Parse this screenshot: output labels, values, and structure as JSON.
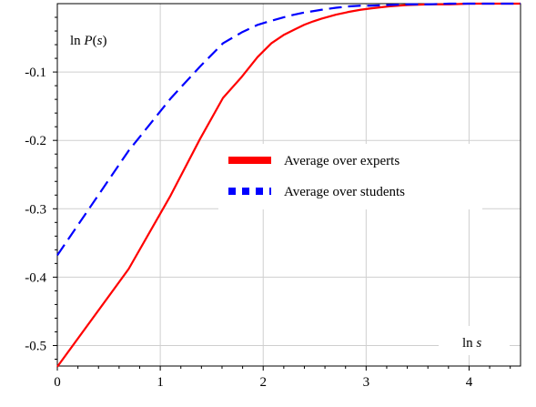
{
  "chart_data": {
    "type": "line",
    "xlabel": {
      "prefix": "ln ",
      "var": "s"
    },
    "ylabel": {
      "prefix": "ln ",
      "var": "P",
      "arg_open": "(",
      "arg_var": "s",
      "arg_close": ")"
    },
    "xlim": [
      0,
      4.5
    ],
    "ylim": [
      -0.53,
      0.0
    ],
    "xticks": [
      {
        "value": 0,
        "label": "0"
      },
      {
        "value": 1,
        "label": "1"
      },
      {
        "value": 2,
        "label": "2"
      },
      {
        "value": 3,
        "label": "3"
      },
      {
        "value": 4,
        "label": "4"
      }
    ],
    "yticks": [
      {
        "value": -0.1,
        "label": "-0.1"
      },
      {
        "value": -0.2,
        "label": "-0.2"
      },
      {
        "value": -0.3,
        "label": "-0.3"
      },
      {
        "value": -0.4,
        "label": "-0.4"
      },
      {
        "value": -0.5,
        "label": "-0.5"
      }
    ],
    "grid": true,
    "legend_position": "center-right",
    "series": [
      {
        "name": "Average over experts",
        "color": "#ff0000",
        "style": "solid",
        "x": [
          0,
          0.693,
          1.099,
          1.386,
          1.609,
          1.792,
          1.946,
          2.079,
          2.197,
          2.303,
          2.398,
          2.485,
          2.565,
          2.708,
          2.833,
          2.944,
          3.045,
          3.219,
          3.401,
          3.611,
          3.807,
          4.0,
          4.248,
          4.5
        ],
        "y": [
          -0.531,
          -0.388,
          -0.281,
          -0.198,
          -0.138,
          -0.107,
          -0.078,
          -0.058,
          -0.046,
          -0.038,
          -0.031,
          -0.026,
          -0.022,
          -0.016,
          -0.012,
          -0.009,
          -0.007,
          -0.004,
          -0.002,
          -0.001,
          -0.001,
          0.0,
          0.0,
          0.0
        ]
      },
      {
        "name": "Average over students",
        "color": "#0000ff",
        "style": "dashed",
        "x": [
          0,
          0.693,
          1.099,
          1.386,
          1.609,
          1.792,
          1.946,
          2.079,
          2.197,
          2.303,
          2.398,
          2.485,
          2.565,
          2.708,
          2.833,
          2.944,
          3.045,
          3.219,
          3.401,
          3.611,
          3.807,
          4.0,
          4.248,
          4.5
        ],
        "y": [
          -0.368,
          -0.215,
          -0.139,
          -0.092,
          -0.058,
          -0.042,
          -0.031,
          -0.025,
          -0.02,
          -0.016,
          -0.013,
          -0.011,
          -0.009,
          -0.006,
          -0.004,
          -0.003,
          -0.003,
          -0.002,
          -0.001,
          -0.001,
          0.0,
          0.0,
          0.0,
          0.0
        ]
      }
    ]
  }
}
